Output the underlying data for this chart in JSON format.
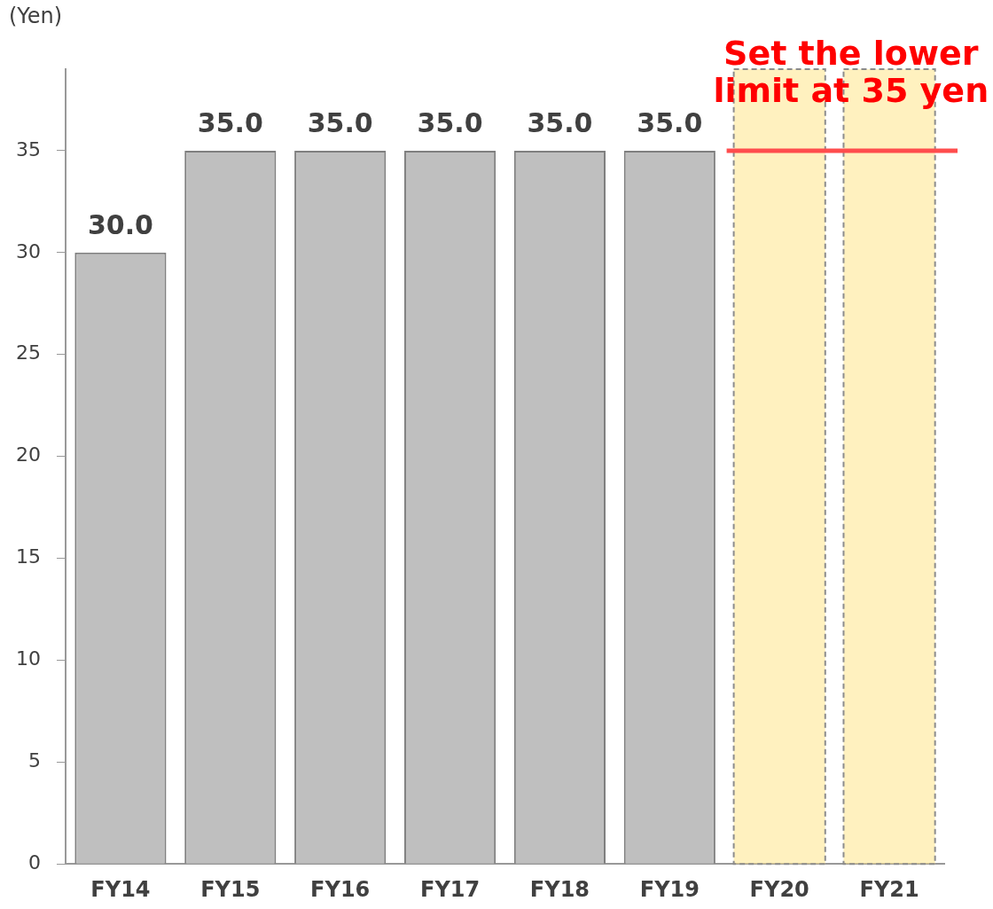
{
  "chart_data": {
    "type": "bar",
    "ylabel": "(Yen)",
    "categories": [
      "FY14",
      "FY15",
      "FY16",
      "FY17",
      "FY18",
      "FY19",
      "FY20",
      "FY21"
    ],
    "values": [
      30,
      35,
      35,
      35,
      35,
      35,
      null,
      null
    ],
    "value_labels": [
      "30.0",
      "35.0",
      "35.0",
      "35.0",
      "35.0",
      "35.0",
      null,
      null
    ],
    "color": "#bfbfbf",
    "ylim": [
      0,
      39
    ],
    "yticks": [
      0,
      5,
      10,
      15,
      20,
      25,
      30,
      35
    ],
    "grid": false,
    "legend": false,
    "bands": [
      {
        "axis": "x",
        "from": "FY20",
        "to": "FY20",
        "color": "#ffe68a"
      },
      {
        "axis": "x",
        "from": "FY21",
        "to": "FY21",
        "color": "#ffe68a"
      }
    ],
    "ref_lines": [
      {
        "axis": "y",
        "value": 35,
        "label": "Set the lower limit at 35 yen",
        "color": "#ff4d4d"
      }
    ]
  }
}
